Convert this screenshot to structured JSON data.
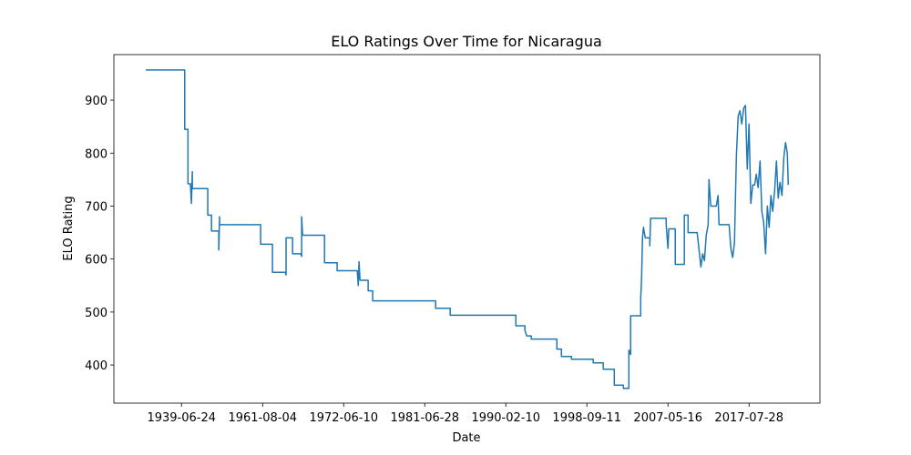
{
  "chart_data": {
    "type": "line",
    "title": "ELO Ratings Over Time for Nicaragua",
    "xlabel": "Date",
    "ylabel": "ELO Rating",
    "x": [
      0,
      24,
      24,
      26,
      26,
      27.5,
      28.1,
      28.7,
      28.7,
      38.2,
      38.2,
      40.5,
      40.5,
      45,
      45,
      45.5,
      45.5,
      70.8,
      70.8,
      78.1,
      78.1,
      86,
      86.5,
      86.5,
      90.5,
      90.5,
      95.5,
      96.1,
      96.1,
      96.7,
      110.2,
      110.2,
      118,
      118,
      130.4,
      131,
      131.5,
      132.1,
      137.1,
      137.1,
      139.9,
      139.9,
      178.7,
      178.7,
      187.7,
      187.7,
      228.2,
      228.2,
      233.8,
      233.8,
      234.9,
      237.7,
      237.7,
      253.5,
      253.5,
      256.3,
      256.3,
      262.5,
      262.5,
      275.9,
      275.9,
      282.1,
      282.1,
      288.9,
      288.9,
      294.5,
      294.5,
      297.9,
      297.9,
      299,
      299,
      305.2,
      305.2,
      305.7,
      306.3,
      306.9,
      308,
      310.8,
      310.8,
      311.3,
      320.9,
      320.9,
      322,
      322.5,
      326.5,
      326.5,
      332.1,
      332.1,
      334.4,
      334.4,
      340,
      341.1,
      342.3,
      343.4,
      344.5,
      345.6,
      346.8,
      347.3,
      348.4,
      351.8,
      352.9,
      353.5,
      359.7,
      360.8,
      361.9,
      363,
      364.2,
      365.3,
      366.4,
      367.5,
      368.7,
      369.8,
      370.9,
      372,
      373.1,
      374.3,
      375.4,
      376.5,
      377.6,
      378.8,
      379.9,
      381,
      382.2,
      383.3,
      384.4,
      385.5,
      386.6,
      387.8,
      388.9,
      390,
      391.1,
      392.3,
      393.4,
      394.5,
      395.6,
      396.2
    ],
    "series": [
      {
        "name": "Nicaragua",
        "color": "#1f77b4",
        "values": [
          957,
          957,
          845,
          845,
          742,
          742,
          705,
          765,
          733,
          733,
          683,
          683,
          653,
          653,
          617,
          680,
          665,
          665,
          628,
          628,
          575,
          575,
          570,
          640,
          640,
          610,
          610,
          605,
          680,
          645,
          645,
          593,
          593,
          578,
          578,
          550,
          595,
          560,
          560,
          540,
          540,
          521,
          521,
          507,
          507,
          494,
          494,
          474,
          474,
          465,
          455,
          455,
          449,
          449,
          430,
          430,
          416,
          416,
          411,
          411,
          404,
          404,
          392,
          392,
          362,
          362,
          356,
          356,
          428,
          420,
          493,
          493,
          525,
          560,
          640,
          660,
          640,
          640,
          625,
          677,
          677,
          665,
          620,
          657,
          657,
          590,
          590,
          683,
          683,
          650,
          650,
          620,
          585,
          610,
          597,
          645,
          665,
          750,
          700,
          700,
          720,
          665,
          665,
          620,
          603,
          630,
          795,
          870,
          880,
          855,
          885,
          890,
          770,
          855,
          705,
          740,
          740,
          760,
          735,
          785,
          690,
          670,
          610,
          700,
          660,
          720,
          690,
          730,
          785,
          715,
          745,
          720,
          790,
          820,
          800,
          740
        ]
      }
    ],
    "xlim": [
      -19.7,
      415.7
    ],
    "xticks": [
      {
        "value": 22,
        "label": "1939-06-24"
      },
      {
        "value": 72,
        "label": "1961-08-04"
      },
      {
        "value": 122,
        "label": "1972-06-10"
      },
      {
        "value": 172,
        "label": "1981-06-28"
      },
      {
        "value": 222,
        "label": "1990-02-10"
      },
      {
        "value": 272,
        "label": "1998-09-11"
      },
      {
        "value": 322,
        "label": "2007-05-16"
      },
      {
        "value": 372,
        "label": "2017-07-28"
      }
    ],
    "ylim": [
      328,
      986
    ],
    "yticks": [
      400,
      500,
      600,
      700,
      800,
      900
    ],
    "grid": false
  }
}
